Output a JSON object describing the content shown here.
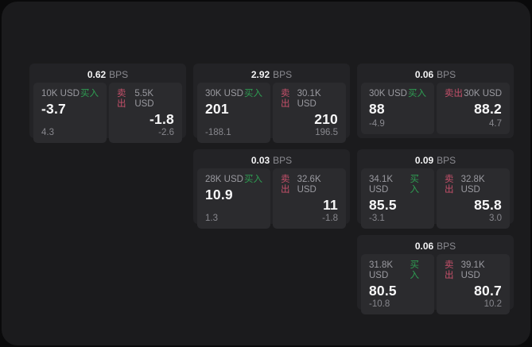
{
  "labels": {
    "buy": "买入",
    "sell": "卖出",
    "bps_suffix": "BPS"
  },
  "colors": {
    "buy_green": "#2e9e52",
    "sell_red": "#c5506a",
    "surface": "#1b1b1d",
    "card_bg": "#232326",
    "panel_bg": "#2b2b2e"
  },
  "cards": [
    {
      "row": 1,
      "col": 1,
      "bps": "0.62",
      "buy": {
        "amount": "10K USD",
        "value": "-3.7",
        "sub": "4.3"
      },
      "sell": {
        "amount": "5.5K USD",
        "value": "-1.8",
        "sub": "-2.6"
      }
    },
    {
      "row": 1,
      "col": 2,
      "bps": "2.92",
      "buy": {
        "amount": "30K USD",
        "value": "201",
        "sub": "-188.1"
      },
      "sell": {
        "amount": "30.1K USD",
        "value": "210",
        "sub": "196.5"
      }
    },
    {
      "row": 1,
      "col": 3,
      "bps": "0.06",
      "buy": {
        "amount": "30K USD",
        "value": "88",
        "sub": "-4.9"
      },
      "sell": {
        "amount": "30K USD",
        "value": "88.2",
        "sub": "4.7"
      }
    },
    {
      "row": 2,
      "col": 2,
      "bps": "0.03",
      "buy": {
        "amount": "28K USD",
        "value": "10.9",
        "sub": "1.3"
      },
      "sell": {
        "amount": "32.6K USD",
        "value": "11",
        "sub": "-1.8"
      }
    },
    {
      "row": 2,
      "col": 3,
      "bps": "0.09",
      "buy": {
        "amount": "34.1K USD",
        "value": "85.5",
        "sub": "-3.1"
      },
      "sell": {
        "amount": "32.8K USD",
        "value": "85.8",
        "sub": "3.0"
      }
    },
    {
      "row": 3,
      "col": 3,
      "bps": "0.06",
      "buy": {
        "amount": "31.8K USD",
        "value": "80.5",
        "sub": "-10.8"
      },
      "sell": {
        "amount": "39.1K USD",
        "value": "80.7",
        "sub": "10.2"
      }
    }
  ]
}
